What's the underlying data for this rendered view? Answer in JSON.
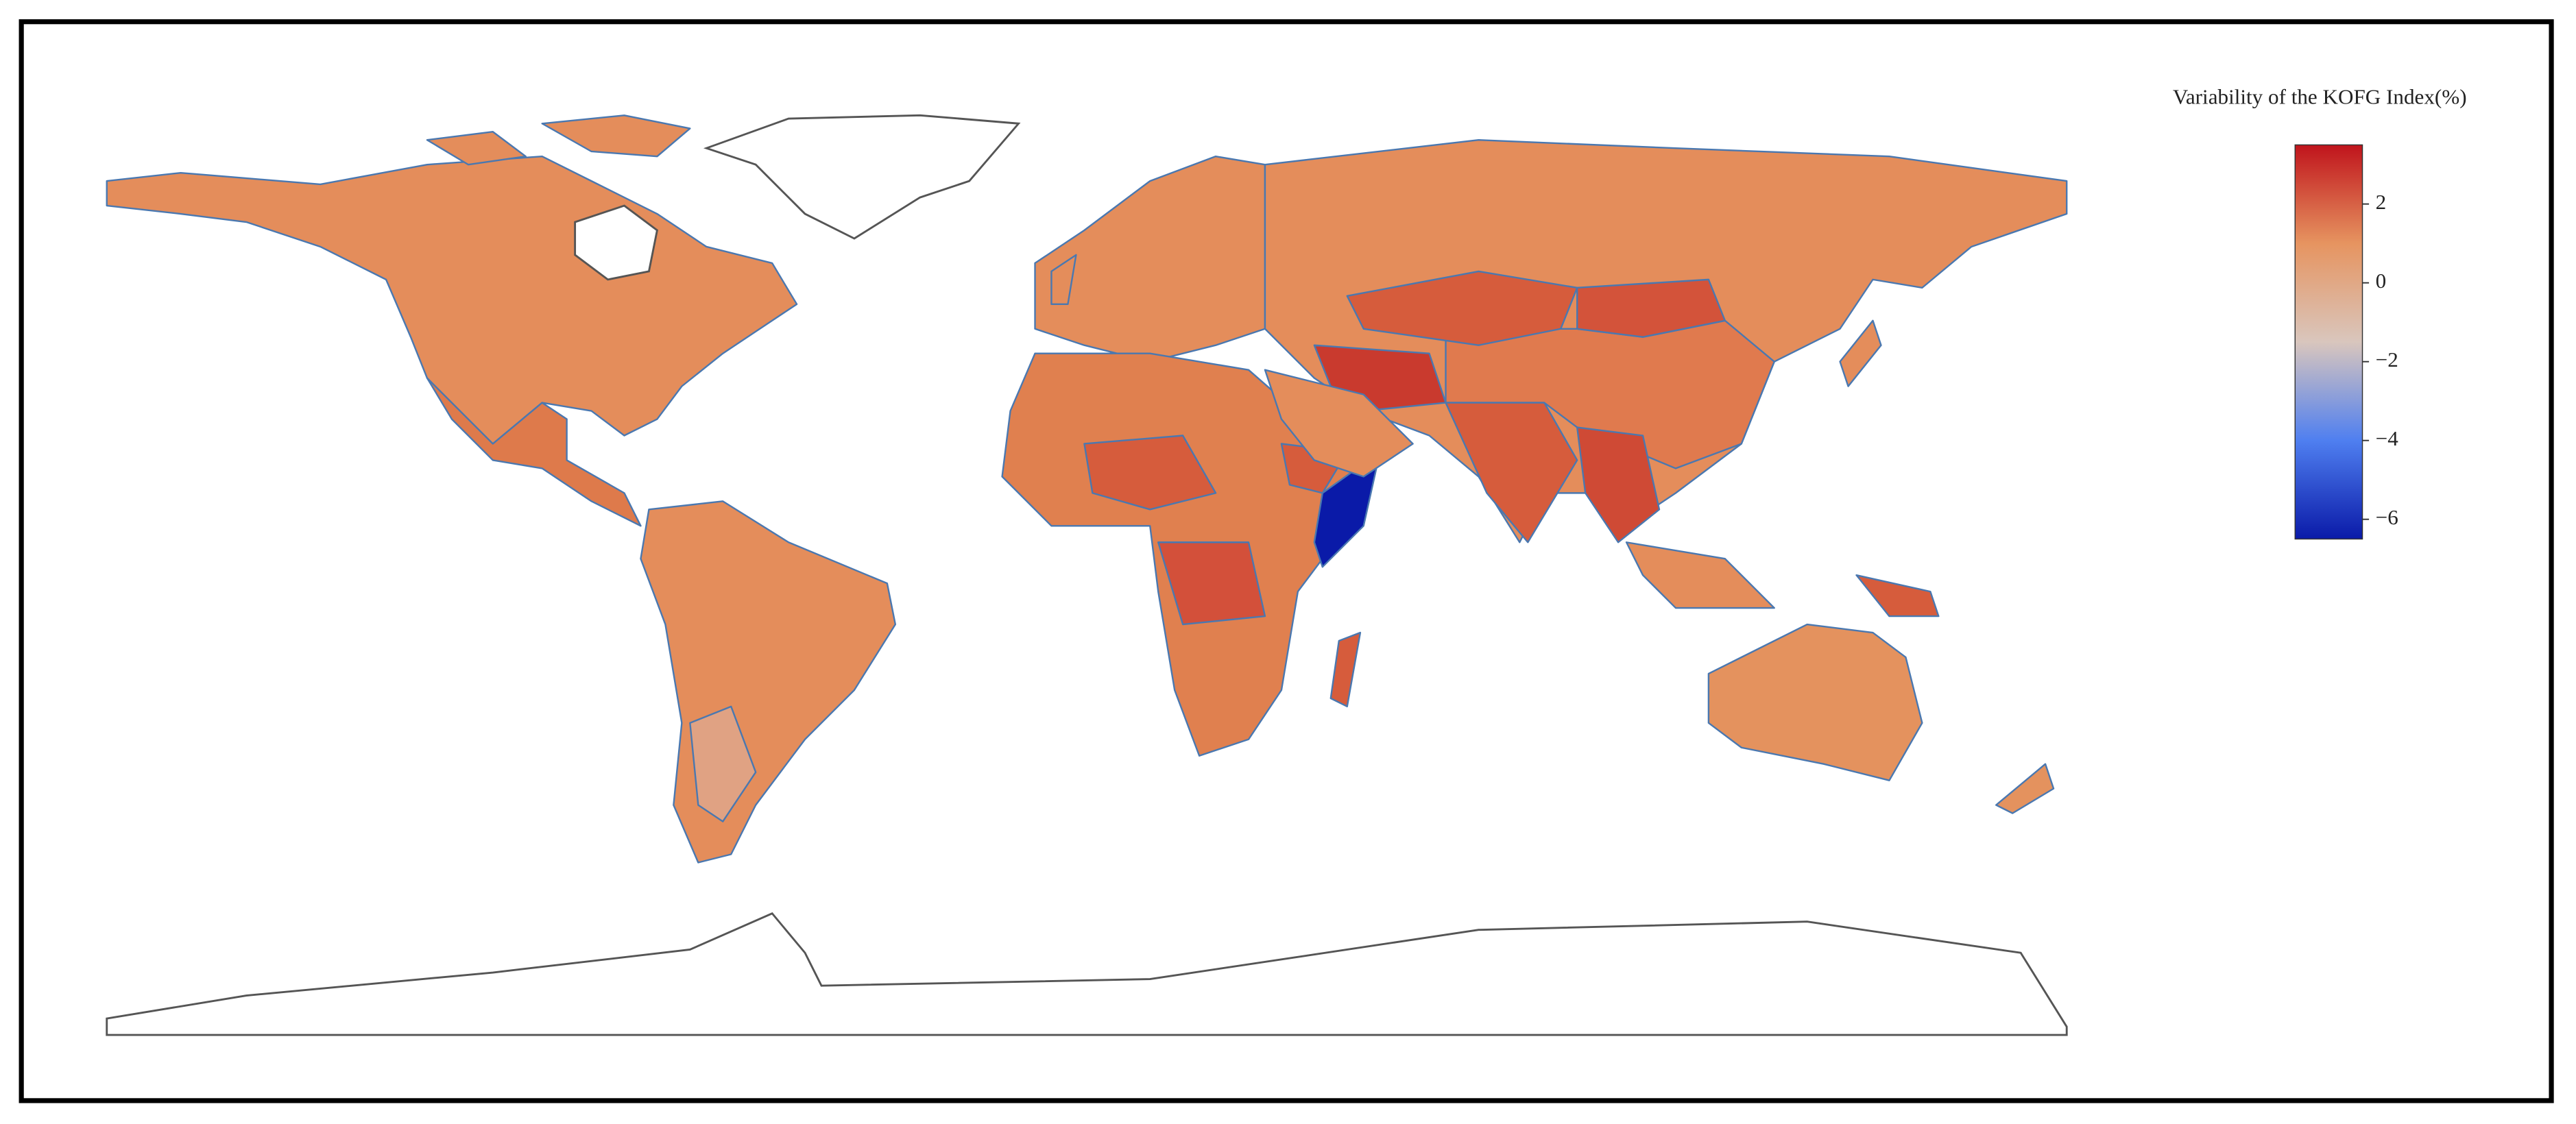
{
  "chart_data": {
    "type": "choropleth",
    "title": "Variability of the KOFG Index(%)",
    "colorscale": [
      "#0a1aa8",
      "#4f7ff0",
      "#d9c6bd",
      "#e69460",
      "#c0141c"
    ],
    "colorbar": {
      "lim": [
        -6.5,
        3.5
      ],
      "ticks": [
        {
          "value": 2,
          "label": "2"
        },
        {
          "value": 0,
          "label": "0"
        },
        {
          "value": -2,
          "label": "−2"
        },
        {
          "value": -4,
          "label": "−4"
        },
        {
          "value": -6,
          "label": "−6"
        }
      ]
    }
  }
}
